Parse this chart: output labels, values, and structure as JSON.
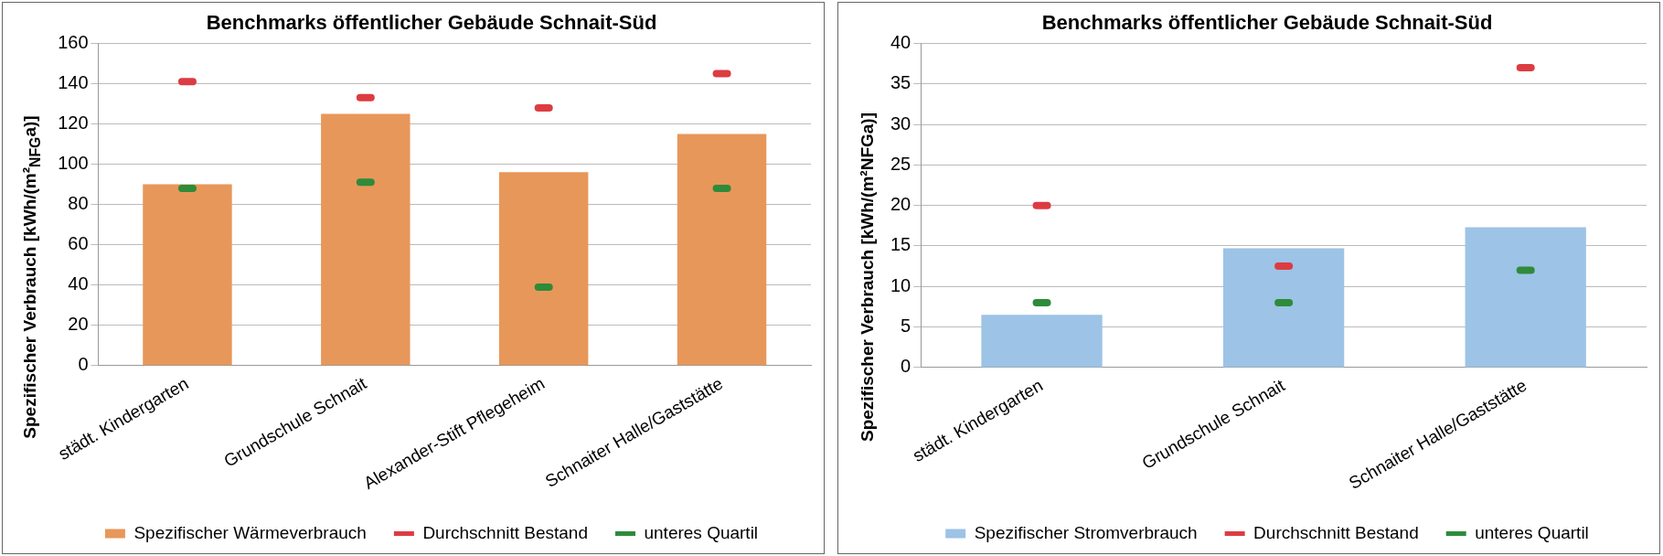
{
  "chart_data": [
    {
      "type": "bar",
      "title": "Benchmarks öffentlicher Gebäude Schnait-Süd",
      "ylabel": "Spezifischer Verbrauch [kWh/(m²$_{NFG}$a)]",
      "categories": [
        "städt. Kindergarten",
        "Grundschule Schnait",
        "Alexander-Stift Pflegeheim",
        "Schnaiter Halle/Gaststätte"
      ],
      "ylim": [
        0,
        160
      ],
      "yticks": [
        0,
        20,
        40,
        60,
        80,
        100,
        120,
        140,
        160
      ],
      "grid": "y",
      "legend": "bottom",
      "series": [
        {
          "name": "Spezifischer Wärmeverbrauch",
          "color": "#e8975a",
          "values": [
            90,
            125,
            96,
            115
          ]
        },
        {
          "name": "Durchschnitt Bestand",
          "type": "scatter",
          "color": "#dc3c41",
          "x": [
            "städt. Kindergarten",
            "Grundschule Schnait",
            "Alexander-Stift Pflegeheim",
            "Schnaiter Halle/Gaststätte"
          ],
          "values": [
            141,
            133,
            128,
            145
          ]
        },
        {
          "name": "unteres Quartil",
          "type": "scatter",
          "color": "#2e8b3a",
          "x": [
            "städt. Kindergarten",
            "Grundschule Schnait",
            "Alexander-Stift Pflegeheim",
            "Schnaiter Halle/Gaststätte"
          ],
          "values": [
            88,
            91,
            39,
            88
          ]
        }
      ]
    },
    {
      "type": "bar",
      "title": "Benchmarks öffentlicher Gebäude Schnait-Süd",
      "ylabel": "Spezifischer Verbrauch [kWh/(m²NFGa)]",
      "categories": [
        "städt. Kindergarten",
        "Grundschule Schnait",
        "Schnaiter Halle/Gaststätte"
      ],
      "ylim": [
        0,
        40
      ],
      "yticks": [
        0,
        5,
        10,
        15,
        20,
        25,
        30,
        35,
        40
      ],
      "grid": "y",
      "legend": "bottom",
      "series": [
        {
          "name": "Spezifischer Stromverbrauch",
          "color": "#9dc3e6",
          "values": [
            6.5,
            14.7,
            17.3
          ]
        },
        {
          "name": "Durchschnitt Bestand",
          "type": "scatter",
          "color": "#dc3c41",
          "x": [
            "städt. Kindergarten",
            "Grundschule Schnait",
            "Schnaiter Halle/Gaststätte"
          ],
          "values": [
            20,
            12.5,
            37
          ]
        },
        {
          "name": "unteres Quartil",
          "type": "scatter",
          "color": "#2e8b3a",
          "x": [
            "städt. Kindergarten",
            "Grundschule Schnait",
            "Schnaiter Halle/Gaststätte"
          ],
          "values": [
            8,
            8,
            12
          ]
        }
      ]
    }
  ]
}
